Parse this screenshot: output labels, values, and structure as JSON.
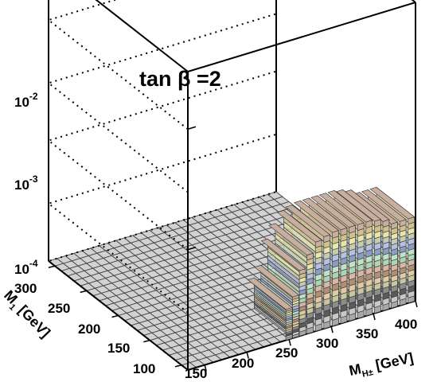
{
  "chart_data": {
    "type": "lego3d",
    "annotation": "tan β =2",
    "x_axis": {
      "label": "M",
      "label_sub": "H±",
      "label_unit": "[GeV]",
      "range": [
        130,
        400
      ],
      "ticks": [
        "150",
        "200",
        "250",
        "300",
        "350",
        "400"
      ]
    },
    "y_axis": {
      "label": "M",
      "label_sub": "1",
      "label_unit": "[GeV]",
      "range": [
        90,
        310
      ],
      "ticks": [
        "100",
        "150",
        "200",
        "250",
        "300"
      ]
    },
    "z_axis": {
      "scale": "log",
      "range": [
        0.0001,
        0.03
      ],
      "ticks": [
        {
          "base": "10",
          "exp": "-4"
        },
        {
          "base": "10",
          "exp": "-3"
        },
        {
          "base": "10",
          "exp": "-2"
        }
      ]
    },
    "grid": true,
    "filled_region_x": [
      245,
      400
    ],
    "filled_region_y": [
      90,
      150
    ],
    "bar_tops": [
      {
        "x": 250,
        "value": 0.00018
      },
      {
        "x": 258,
        "value": 0.00022
      },
      {
        "x": 266,
        "value": 0.00035
      },
      {
        "x": 275,
        "value": 0.00045
      },
      {
        "x": 285,
        "value": 0.00055
      },
      {
        "x": 295,
        "value": 0.00058
      },
      {
        "x": 305,
        "value": 0.0006
      },
      {
        "x": 315,
        "value": 0.0006
      },
      {
        "x": 325,
        "value": 0.0006
      },
      {
        "x": 335,
        "value": 0.0006
      },
      {
        "x": 345,
        "value": 0.0006
      },
      {
        "x": 355,
        "value": 0.00058
      },
      {
        "x": 365,
        "value": 0.00055
      },
      {
        "x": 375,
        "value": 0.0005
      },
      {
        "x": 385,
        "value": 0.0005
      },
      {
        "x": 395,
        "value": 0.0005
      }
    ],
    "color_bands": [
      "#a8a8a8",
      "#c8c8c8",
      "#5a5a5a",
      "#8c8c8c",
      "#c7c7a0",
      "#e0c9a6",
      "#b08f7a",
      "#d7b8a6",
      "#a7d6b8",
      "#c2e2c8",
      "#8e9cc4",
      "#b6c0e0",
      "#c7ccae",
      "#e8e6aa",
      "#d0c090",
      "#c7ae9f"
    ]
  }
}
